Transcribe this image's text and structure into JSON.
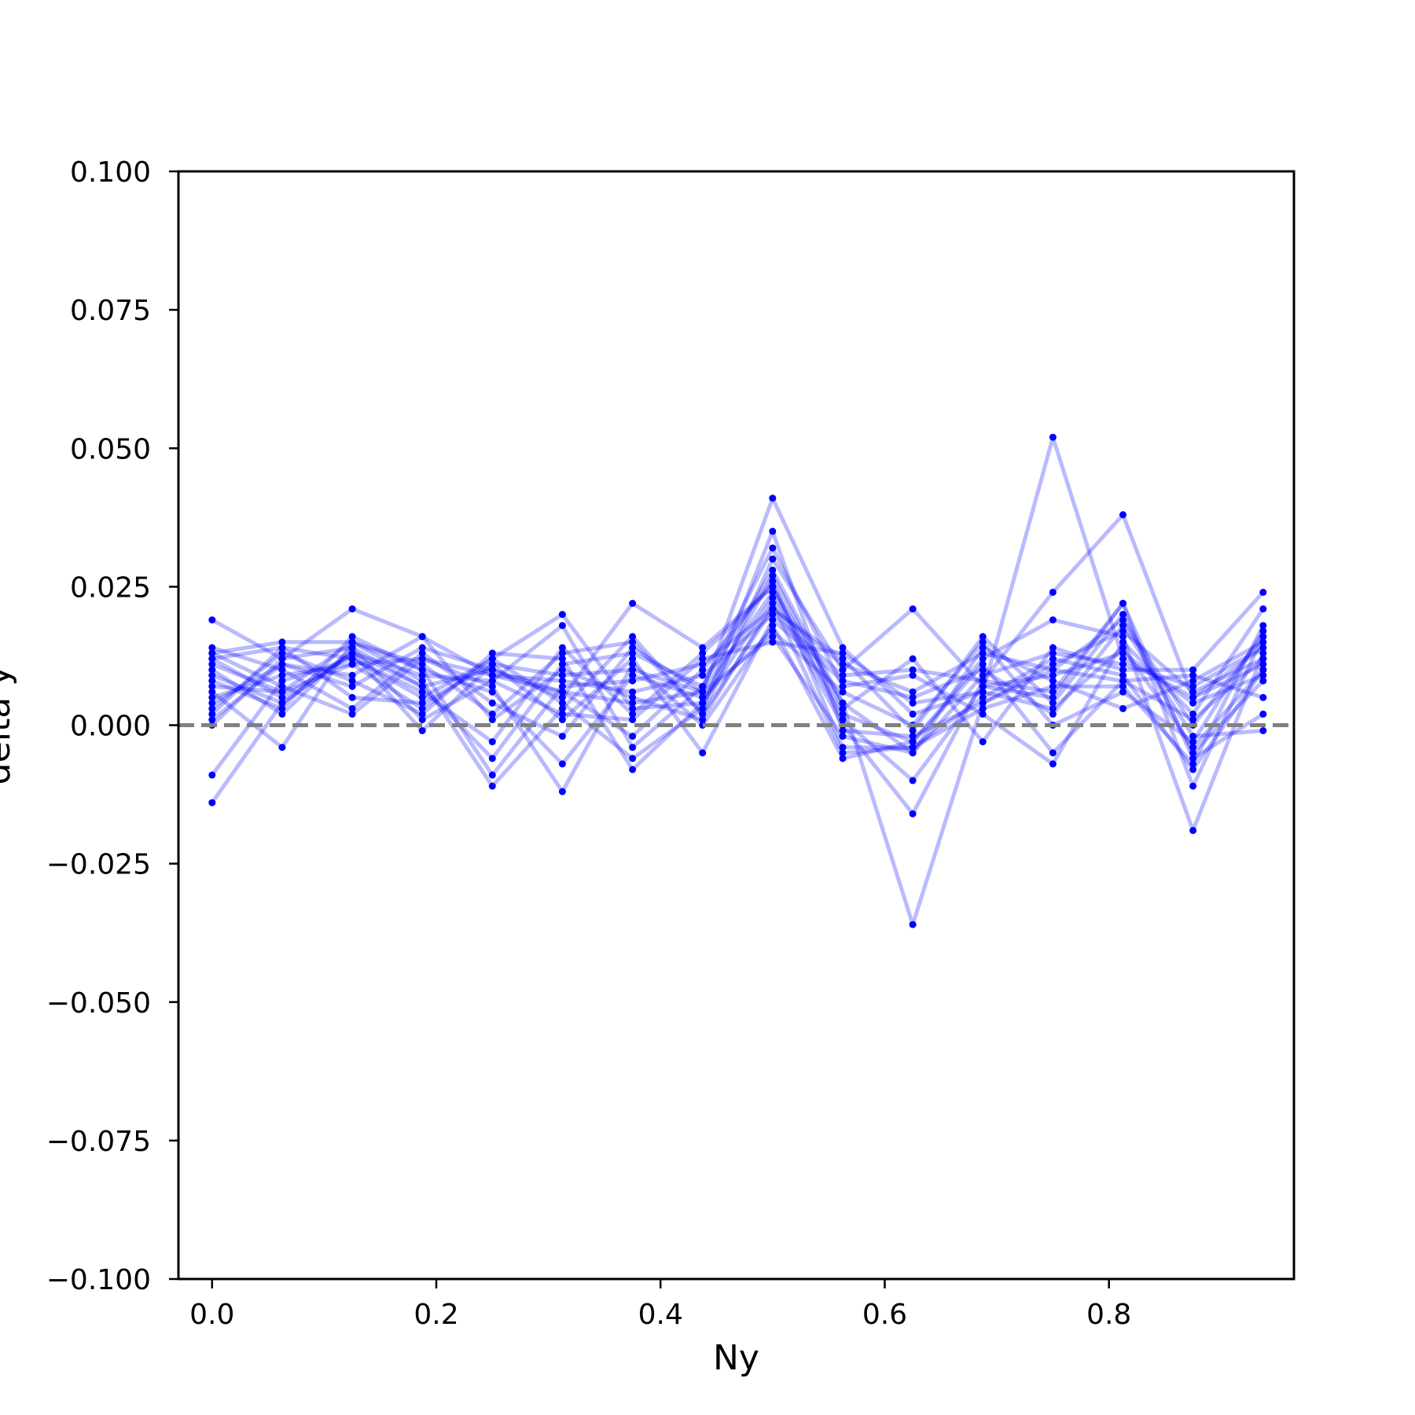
{
  "chart_data": {
    "type": "line",
    "title": "",
    "xlabel": "Ny",
    "ylabel": "delta y",
    "xlim": [
      -0.03,
      0.965
    ],
    "ylim": [
      -0.1,
      0.1
    ],
    "xticks": [
      "0.0",
      "0.2",
      "0.4",
      "0.6",
      "0.8"
    ],
    "xtick_values": [
      0.0,
      0.2,
      0.4,
      0.6,
      0.8
    ],
    "yticks": [
      "0.100",
      "0.075",
      "0.050",
      "0.025",
      "0.000",
      "−0.025",
      "−0.050",
      "−0.075",
      "−0.100"
    ],
    "ytick_values": [
      0.1,
      0.075,
      0.05,
      0.025,
      0.0,
      -0.025,
      -0.05,
      -0.075,
      -0.1
    ],
    "reference_line": {
      "y": 0.0,
      "style": "dashed",
      "color": "#808080"
    },
    "grid": false,
    "legend": "none",
    "colors": {
      "series": "#0000ff",
      "reference": "#808080",
      "axes": "#000000"
    },
    "x": [
      0.0,
      0.0625,
      0.125,
      0.1875,
      0.25,
      0.3125,
      0.375,
      0.4375,
      0.5,
      0.5625,
      0.625,
      0.6875,
      0.75,
      0.8125,
      0.875,
      0.9375
    ],
    "series": [
      {
        "values": [
          0.019,
          0.012,
          0.021,
          0.016,
          0.009,
          0.006,
          0.004,
          0.006,
          0.041,
          0.014,
          0.002,
          0.006,
          0.052,
          0.012,
          0.005,
          0.014
        ]
      },
      {
        "values": [
          -0.014,
          0.004,
          0.013,
          0.007,
          0.01,
          0.005,
          0.022,
          0.014,
          0.025,
          0.004,
          -0.036,
          0.004,
          0.01,
          0.008,
          0.001,
          0.012
        ]
      },
      {
        "values": [
          -0.009,
          0.008,
          0.012,
          0.005,
          0.012,
          0.02,
          0.003,
          0.004,
          0.023,
          0.0,
          -0.016,
          0.008,
          0.024,
          0.038,
          0.005,
          0.011
        ]
      },
      {
        "values": [
          0.013,
          0.015,
          0.015,
          0.008,
          -0.011,
          0.003,
          0.016,
          0.002,
          0.03,
          0.01,
          0.021,
          0.007,
          0.005,
          0.022,
          -0.011,
          0.016
        ]
      },
      {
        "values": [
          0.011,
          0.006,
          0.011,
          0.012,
          0.007,
          -0.012,
          0.011,
          0.0,
          0.018,
          -0.006,
          -0.003,
          0.012,
          0.019,
          0.016,
          -0.019,
          0.013
        ]
      },
      {
        "values": [
          0.003,
          0.013,
          0.008,
          0.002,
          0.013,
          0.012,
          -0.008,
          0.004,
          0.027,
          0.003,
          0.012,
          -0.003,
          0.014,
          0.01,
          0.01,
          0.024
        ]
      },
      {
        "values": [
          0.006,
          -0.004,
          0.015,
          0.01,
          -0.009,
          0.007,
          0.008,
          0.011,
          0.021,
          0.012,
          -0.001,
          0.016,
          0.004,
          0.02,
          -0.005,
          0.008
        ]
      },
      {
        "values": [
          0.014,
          0.01,
          0.003,
          0.013,
          0.004,
          -0.002,
          0.014,
          0.006,
          0.016,
          -0.002,
          -0.005,
          0.014,
          0.008,
          0.003,
          0.008,
          0.015
        ]
      },
      {
        "values": [
          0.01,
          0.002,
          0.014,
          0.001,
          0.008,
          0.018,
          -0.004,
          0.007,
          0.032,
          0.007,
          0.009,
          0.002,
          -0.007,
          0.015,
          0.002,
          0.021
        ]
      },
      {
        "values": [
          0.004,
          0.011,
          0.009,
          0.016,
          0.001,
          0.01,
          0.005,
          0.001,
          0.022,
          -0.005,
          -0.004,
          0.005,
          0.012,
          0.009,
          -0.008,
          0.01
        ]
      },
      {
        "values": [
          0.012,
          0.005,
          0.013,
          -0.001,
          0.011,
          0.001,
          0.012,
          -0.005,
          0.019,
          0.008,
          0.005,
          0.01,
          0.002,
          0.018,
          -0.002,
          -0.001
        ]
      },
      {
        "values": [
          0.002,
          0.014,
          0.012,
          0.006,
          -0.003,
          0.014,
          0.002,
          0.013,
          0.025,
          0.001,
          -0.01,
          0.007,
          0.009,
          0.013,
          0.004,
          0.009
        ]
      },
      {
        "values": [
          0.008,
          0.003,
          0.016,
          0.01,
          0.006,
          -0.007,
          0.009,
          0.005,
          0.017,
          0.006,
          0.0,
          0.015,
          0.0,
          0.006,
          -0.003,
          0.017
        ]
      },
      {
        "values": [
          0.005,
          0.009,
          0.011,
          0.003,
          0.012,
          0.004,
          -0.006,
          0.003,
          0.035,
          -0.001,
          -0.002,
          0.004,
          0.011,
          0.017,
          0.006,
          0.012
        ]
      },
      {
        "values": [
          0.013,
          0.007,
          0.002,
          0.012,
          0.009,
          0.008,
          0.006,
          0.009,
          0.02,
          0.009,
          0.01,
          0.008,
          0.006,
          0.022,
          -0.006,
          0.002
        ]
      },
      {
        "values": [
          0.0,
          0.012,
          0.014,
          0.007,
          -0.006,
          0.011,
          0.013,
          0.007,
          0.028,
          0.004,
          -0.005,
          0.009,
          0.013,
          0.011,
          0.007,
          0.014
        ]
      },
      {
        "values": [
          0.009,
          0.004,
          0.013,
          0.009,
          0.008,
          0.002,
          0.001,
          0.012,
          0.015,
          0.013,
          0.004,
          0.006,
          0.003,
          0.014,
          -0.004,
          0.01
        ]
      },
      {
        "values": [
          0.012,
          0.014,
          0.005,
          0.004,
          0.011,
          0.009,
          0.01,
          0.006,
          0.024,
          0.002,
          -0.003,
          0.011,
          -0.005,
          0.008,
          0.009,
          0.005
        ]
      },
      {
        "values": [
          0.007,
          0.006,
          0.015,
          0.011,
          0.002,
          0.013,
          0.015,
          0.002,
          0.021,
          0.011,
          0.006,
          0.013,
          0.01,
          0.019,
          0.0,
          0.016
        ]
      },
      {
        "values": [
          0.001,
          0.011,
          0.007,
          0.014,
          0.01,
          0.006,
          -0.002,
          0.01,
          0.026,
          -0.004,
          -0.004,
          0.003,
          0.007,
          0.007,
          -0.007,
          0.018
        ]
      }
    ]
  }
}
